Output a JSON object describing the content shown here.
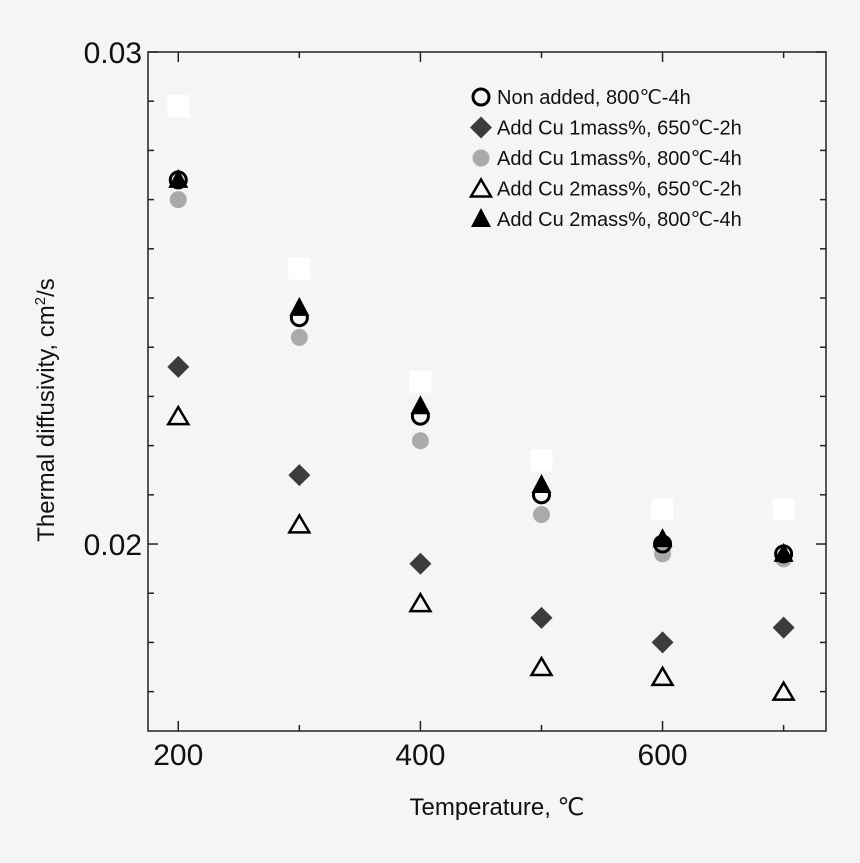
{
  "chart_data": {
    "type": "scatter",
    "xlabel": "Temperature, ℃",
    "ylabel_main": "Thermal diffusivity, cm",
    "ylabel_sup": "2",
    "ylabel_tail": "/s",
    "xlim": [
      175,
      735
    ],
    "ylim": [
      0.0162,
      0.03
    ],
    "x_ticks_labeled": [
      "200",
      "400",
      "600"
    ],
    "x_tick_values_labeled": [
      200,
      400,
      600
    ],
    "x_tick_values_minor": [
      300,
      500,
      700
    ],
    "y_ticks_labeled": [
      "0.02",
      "0.03"
    ],
    "y_tick_values_labeled": [
      0.02,
      0.03
    ],
    "y_tick_values_minor": [
      0.017,
      0.018,
      0.019,
      0.021,
      0.022,
      0.023,
      0.024,
      0.025,
      0.026,
      0.027,
      0.028,
      0.029
    ],
    "legend_position": "top-right",
    "series": [
      {
        "name": "Non added, 800℃-4h",
        "marker": "open-circle",
        "color": "#000000",
        "x": [
          200,
          300,
          400,
          500,
          600,
          700
        ],
        "y": [
          0.0274,
          0.0246,
          0.0226,
          0.021,
          0.02,
          0.0198
        ]
      },
      {
        "name": "Add Cu 1mass%, 650℃-2h",
        "marker": "filled-diamond",
        "color": "#3c3c3c",
        "x": [
          200,
          300,
          400,
          500,
          600,
          700
        ],
        "y": [
          0.0236,
          0.0214,
          0.0196,
          0.0185,
          0.018,
          0.0183
        ]
      },
      {
        "name": "Add Cu 1mass%, 800℃-4h",
        "marker": "filled-circle",
        "color": "#aaaaaa",
        "x": [
          200,
          300,
          400,
          500,
          600,
          700
        ],
        "y": [
          0.027,
          0.0242,
          0.0221,
          0.0206,
          0.0198,
          0.0197
        ]
      },
      {
        "name": "Add Cu 2mass%, 650℃-2h",
        "marker": "open-triangle",
        "color": "#000000",
        "x": [
          200,
          300,
          400,
          500,
          600,
          700
        ],
        "y": [
          0.0226,
          0.0204,
          0.0188,
          0.0175,
          0.0173,
          0.017
        ]
      },
      {
        "name": "Add Cu 2mass%, 800℃-4h",
        "marker": "filled-triangle",
        "color": "#000000",
        "x": [
          200,
          300,
          400,
          500,
          600,
          700
        ],
        "y": [
          0.0274,
          0.0248,
          0.0228,
          0.0212,
          0.0201,
          0.0198
        ]
      },
      {
        "name": "",
        "marker": "filled-square",
        "color": "#ffffff",
        "x": [
          200,
          300,
          400,
          500,
          600,
          700
        ],
        "y": [
          0.0289,
          0.0256,
          0.0233,
          0.0217,
          0.0207,
          0.0207
        ]
      }
    ]
  }
}
